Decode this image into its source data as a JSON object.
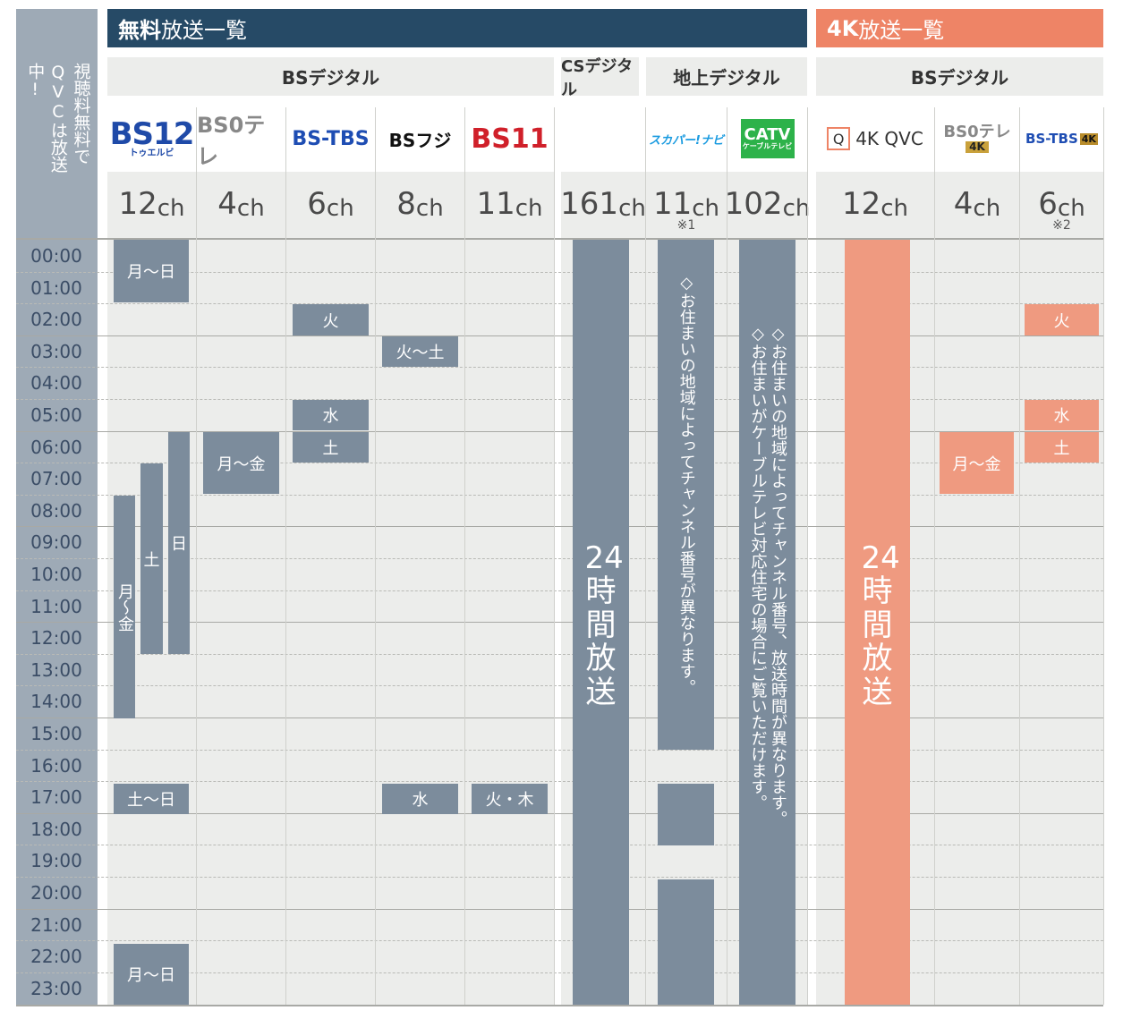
{
  "left_label": "視聴料無料でQVCは放送中!",
  "free_header": {
    "bold": "無料",
    "rest": "放送一覧"
  },
  "k4_header": {
    "bold": "4K",
    "rest": "放送一覧"
  },
  "groups": {
    "bs": "BSデジタル",
    "cs": "CSデジタル",
    "chijo": "地上デジタル",
    "bs4k": "BSデジタル"
  },
  "logos": {
    "bs12": "BS12",
    "bs12_sub": "トゥエルビ",
    "bs0tele": "BS0テレ",
    "bstbs": "BS-TBS",
    "bsfuji": "BSフジ",
    "bs11": "BS11",
    "skapa": "スカパー!ナビ",
    "catv": "CATV",
    "catv_sub": "ケーブルテレビ",
    "qvc4k": "4K QVC",
    "bs0tele4k": "BS0テレ",
    "bs0tele4k_badge": "4K",
    "bstbs4k": "BS-TBS",
    "bstbs4k_badge": "4K"
  },
  "channels": {
    "c1": {
      "num": "12",
      "unit": "ch"
    },
    "c2": {
      "num": "4",
      "unit": "ch"
    },
    "c3": {
      "num": "6",
      "unit": "ch"
    },
    "c4": {
      "num": "8",
      "unit": "ch"
    },
    "c5": {
      "num": "11",
      "unit": "ch"
    },
    "c6": {
      "num": "161",
      "unit": "ch"
    },
    "c7": {
      "num": "11",
      "unit": "ch",
      "note": "※1"
    },
    "c8": {
      "num": "102",
      "unit": "ch"
    },
    "c9": {
      "num": "12",
      "unit": "ch"
    },
    "c10": {
      "num": "4",
      "unit": "ch"
    },
    "c11": {
      "num": "6",
      "unit": "ch",
      "note": "※2"
    }
  },
  "times": [
    "00:00",
    "01:00",
    "02:00",
    "03:00",
    "04:00",
    "05:00",
    "06:00",
    "07:00",
    "08:00",
    "09:00",
    "10:00",
    "11:00",
    "12:00",
    "13:00",
    "14:00",
    "15:00",
    "16:00",
    "17:00",
    "18:00",
    "19:00",
    "20:00",
    "21:00",
    "22:00",
    "23:00"
  ],
  "blocks": {
    "bs12_a": "月〜日",
    "bs12_b": "土〜日",
    "bs12_c": "月〜日",
    "bs12_mf": "月〜金",
    "bs12_sat": "土",
    "bs12_sun": "日",
    "bs0_a": "月〜金",
    "tbs_a": "火",
    "tbs_b": "水",
    "tbs_c": "土",
    "fuji_a": "火〜土",
    "fuji_b": "水",
    "bs11_a": "火・木",
    "cs_24": "24時間放送",
    "skapa_note": "◇お住まいの地域によってチャンネル番号が異なります。",
    "catv_note1": "◇お住まいがケーブルテレビ対応住宅の場合にご覧いただけます。",
    "catv_note2": "◇お住まいの地域によってチャンネル番号、放送時間が異なります。",
    "qvc4k_24": "24時間放送",
    "ntv4k_a": "月〜金",
    "tbs4k_a": "火",
    "tbs4k_b": "水",
    "tbs4k_c": "土"
  },
  "colors": {
    "navy": "#264a66",
    "salmon": "#ee8466",
    "block": "#7c8c9c",
    "block4k": "#ef9a80",
    "col_bg": "#ecedeb",
    "left_bg": "#9eaab6"
  }
}
